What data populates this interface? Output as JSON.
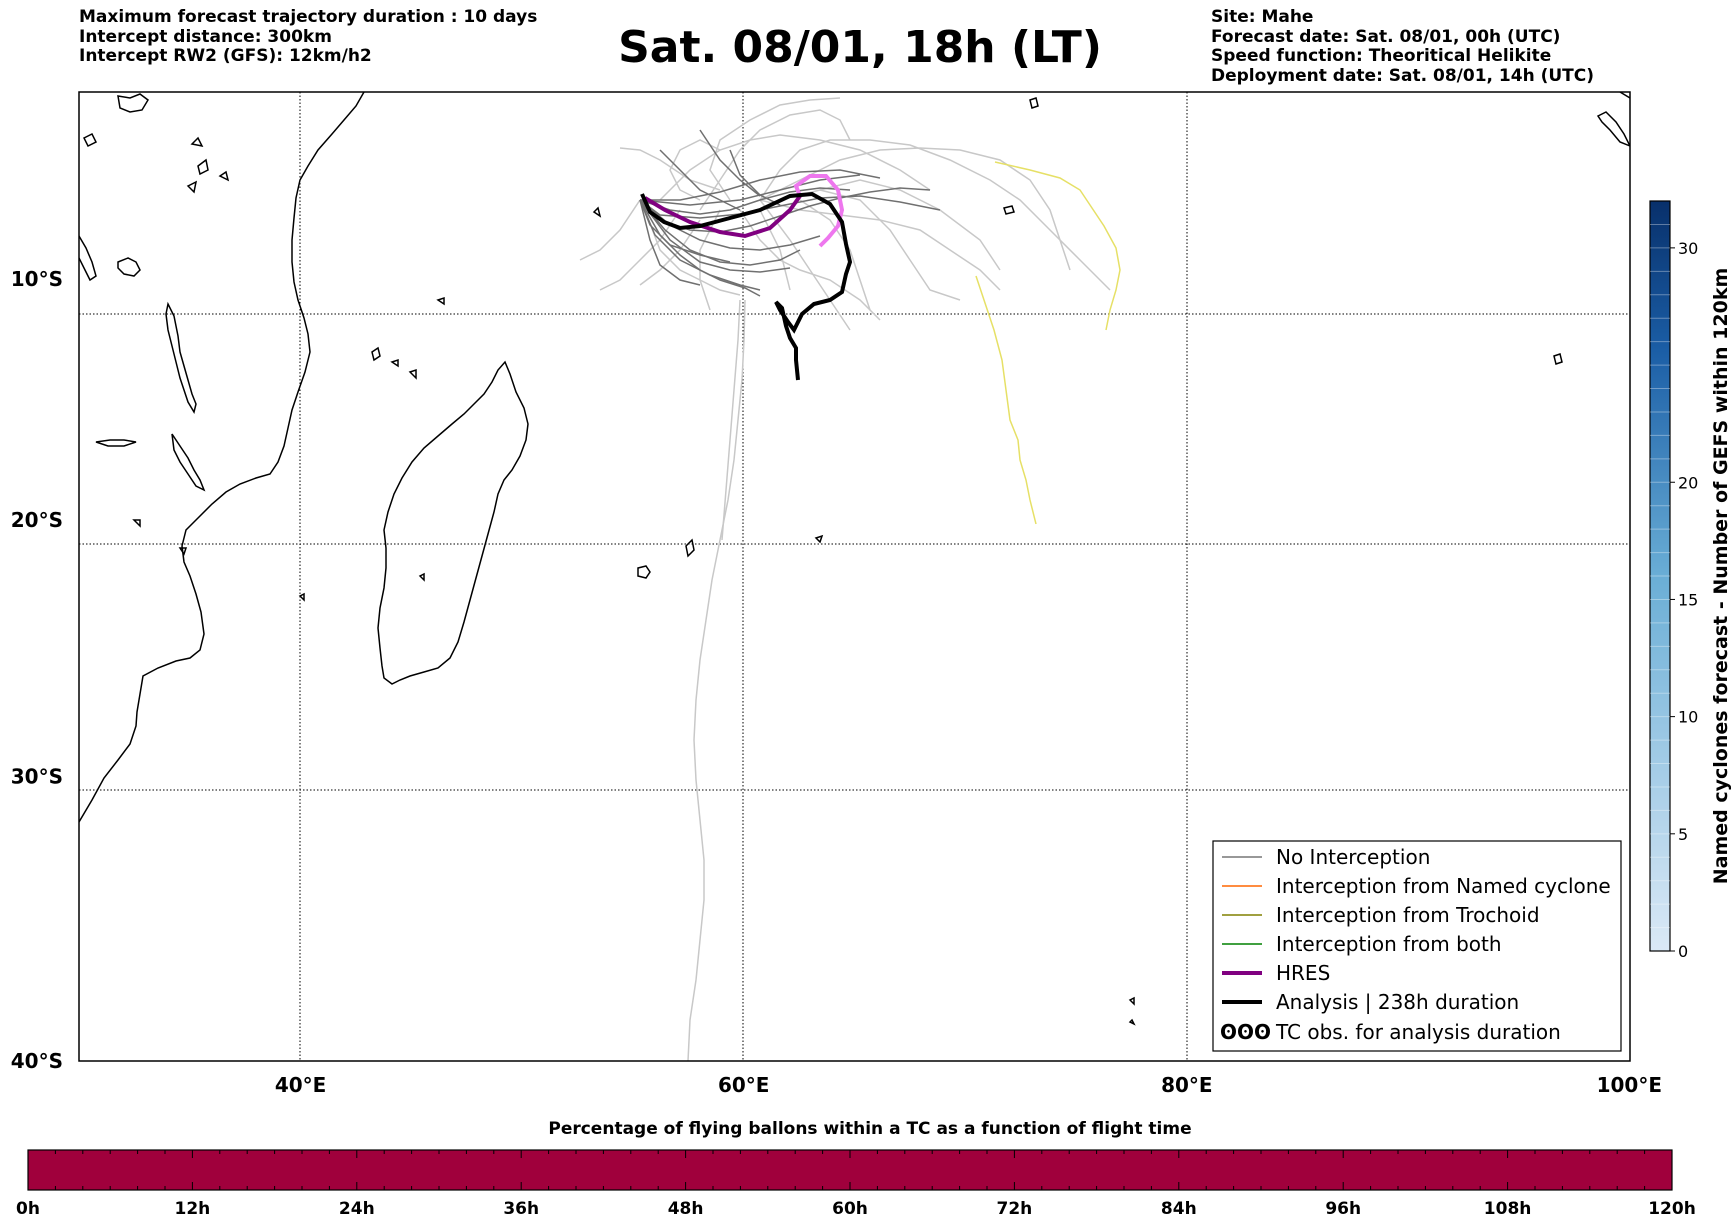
{
  "header": {
    "left_lines": [
      "Maximum forecast trajectory duration : 10 days",
      "Intercept distance: 300km",
      "Intercept RW2 (GFS):  12km/h2"
    ],
    "title": "Sat. 08/01, 18h (LT)",
    "right_lines": [
      "Site: Mahe",
      "Forecast date: Sat. 08/01, 00h (UTC)",
      "Speed function: Theoritical Helikite",
      "Deployment date: Sat. 08/01, 14h (UTC)"
    ]
  },
  "map": {
    "lon_range": [
      30,
      100
    ],
    "lat_range": [
      -40,
      -2
    ],
    "lon_labels": [
      {
        "lon": 40,
        "text": "40°E"
      },
      {
        "lon": 60,
        "text": "60°E"
      },
      {
        "lon": 80,
        "text": "80°E"
      },
      {
        "lon": 100,
        "text": "100°E"
      }
    ],
    "lat_labels": [
      {
        "lat": -10,
        "text": "10°S"
      },
      {
        "lat": -20,
        "text": "20°S"
      },
      {
        "lat": -30,
        "text": "30°S"
      },
      {
        "lat": -40,
        "text": "40°S"
      }
    ],
    "grid": true
  },
  "legend": {
    "placement": "lower-right",
    "items": [
      {
        "label": "No Interception",
        "color": "#777777",
        "style": "thin"
      },
      {
        "label": "Interception from Named cyclone",
        "color": "#ff6600",
        "style": "thin"
      },
      {
        "label": "Interception from Trochoid",
        "color": "#808000",
        "style": "thin"
      },
      {
        "label": "Interception from both",
        "color": "#008000",
        "style": "thin"
      },
      {
        "label": "HRES",
        "color": "#800080",
        "style": "thick"
      },
      {
        "label": "Analysis | 238h duration",
        "color": "#000000",
        "style": "thick"
      },
      {
        "label": "TC obs. for analysis duration",
        "color": "#000000",
        "style": "glyph",
        "glyph": "ʘʘʘ"
      }
    ]
  },
  "colorbar_right": {
    "label": "Named cyclones forecast - Number of GEFS within 120km",
    "range": [
      0,
      32
    ],
    "ticks": [
      "0",
      "5",
      "10",
      "15",
      "20",
      "30"
    ],
    "colors": [
      "#dbe9f6",
      "#1b5ea6",
      "#08306b"
    ]
  },
  "colorbar_bottom": {
    "title": "Percentage of flying ballons within a TC as a function of flight time",
    "ticks": [
      "0h",
      "12h",
      "24h",
      "36h",
      "48h",
      "60h",
      "72h",
      "84h",
      "96h",
      "108h",
      "120h"
    ],
    "fill_color": "#a0003c"
  }
}
